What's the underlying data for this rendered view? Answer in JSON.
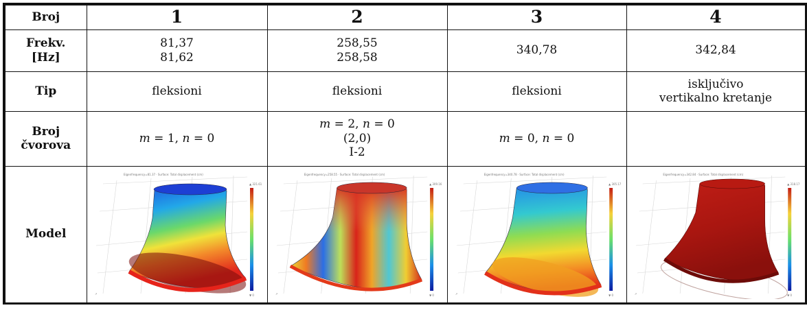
{
  "table": {
    "header": {
      "label": "Broj",
      "columns": [
        "1",
        "2",
        "3",
        "4"
      ]
    },
    "freq": {
      "label_line1": "Frekv.",
      "label_line2": "[Hz]",
      "values": [
        [
          "81,37",
          "81,62"
        ],
        [
          "258,55",
          "258,58"
        ],
        [
          "340,78"
        ],
        [
          "342,84"
        ]
      ]
    },
    "type": {
      "label": "Tip",
      "values": [
        [
          "fleksioni"
        ],
        [
          "fleksioni"
        ],
        [
          "fleksioni"
        ],
        [
          "isključivo",
          "vertikalno kretanje"
        ]
      ]
    },
    "nodes": {
      "label_line1": "Broj",
      "label_line2": "čvorova",
      "values": [
        {
          "m": "1",
          "n": "0",
          "extra": []
        },
        {
          "m": "2",
          "n": "0",
          "extra": [
            "(2,0)",
            "I-2"
          ]
        },
        {
          "m": "0",
          "n": "0",
          "extra": []
        },
        null
      ]
    },
    "model": {
      "label": "Model",
      "images": [
        {
          "colormap_top_color": "#2b6fe8",
          "colormap_bottom_color": "#e8261c",
          "pattern": "tilt-left"
        },
        {
          "colormap_top_color": "#d93a2a",
          "colormap_bottom_color": "#e23b1f",
          "pattern": "nodal-2"
        },
        {
          "colormap_top_color": "#2f8ff0",
          "colormap_bottom_color": "#f06a18",
          "pattern": "tilt-left"
        },
        {
          "colormap_top_color": "#c91f16",
          "colormap_bottom_color": "#a61410",
          "pattern": "uniform-red"
        }
      ]
    }
  }
}
